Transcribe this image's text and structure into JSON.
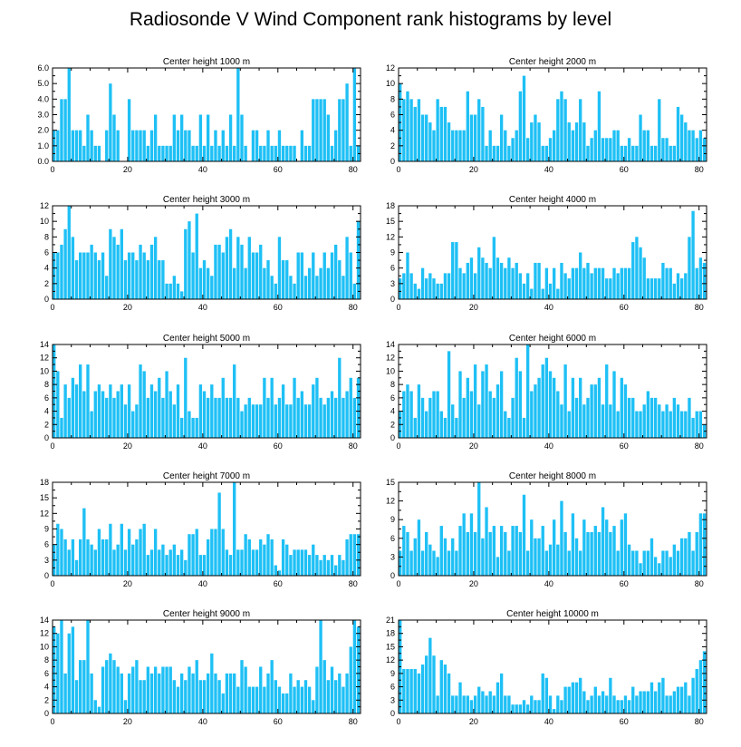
{
  "title": "Radiosonde V Wind Component rank histograms by level",
  "colors": {
    "bar": "#1ec0f5",
    "axis": "#000000",
    "background": "#ffffff"
  },
  "chart_data": [
    {
      "type": "bar",
      "title": "Center height 1000 m",
      "xlim": [
        0,
        82
      ],
      "ylim": [
        0,
        6
      ],
      "yticks": [
        "0.0",
        "1.0",
        "2.0",
        "3.0",
        "4.0",
        "5.0",
        "6.0"
      ],
      "yticks_values": [
        0,
        1,
        2,
        3,
        4,
        5,
        6
      ],
      "xticks": [
        "0",
        "20",
        "40",
        "60",
        "80"
      ],
      "xticks_values": [
        0,
        20,
        40,
        60,
        80
      ],
      "values": [
        2,
        2,
        4,
        4,
        6,
        2,
        2,
        2,
        1,
        3,
        2,
        1,
        1,
        0,
        2,
        5,
        3,
        2,
        0,
        0,
        4,
        2,
        2,
        2,
        2,
        1,
        2,
        3,
        1,
        1,
        1,
        1,
        3,
        2,
        3,
        2,
        2,
        1,
        1,
        3,
        1,
        3,
        1,
        2,
        1,
        2,
        1,
        3,
        1,
        6,
        3,
        1,
        0,
        2,
        2,
        1,
        1,
        2,
        1,
        1,
        2,
        1,
        1,
        1,
        1,
        0,
        2,
        1,
        1,
        4,
        4,
        4,
        4,
        3,
        1,
        2,
        4,
        4,
        5,
        1,
        6,
        1
      ]
    },
    {
      "type": "bar",
      "title": "Center height 2000 m",
      "xlim": [
        0,
        82
      ],
      "ylim": [
        0,
        12
      ],
      "yticks": [
        "0",
        "2",
        "4",
        "6",
        "8",
        "10",
        "12"
      ],
      "yticks_values": [
        0,
        2,
        4,
        6,
        8,
        10,
        12
      ],
      "xticks": [
        "0",
        "20",
        "40",
        "60",
        "80"
      ],
      "xticks_values": [
        0,
        20,
        40,
        60,
        80
      ],
      "values": [
        10,
        8,
        9,
        8,
        7,
        8,
        6,
        6,
        5,
        4,
        8,
        7,
        7,
        5,
        4,
        4,
        4,
        4,
        9,
        6,
        6,
        8,
        7,
        2,
        4,
        2,
        2,
        6,
        4,
        2,
        3,
        4,
        9,
        11,
        3,
        5,
        6,
        5,
        2,
        2,
        3,
        4,
        8,
        9,
        8,
        5,
        4,
        5,
        8,
        5,
        2,
        3,
        4,
        9,
        3,
        3,
        3,
        4,
        4,
        2,
        2,
        3,
        2,
        2,
        6,
        4,
        4,
        2,
        2,
        8,
        3,
        3,
        2,
        2,
        7,
        6,
        5,
        4,
        4,
        3,
        4,
        3
      ]
    },
    {
      "type": "bar",
      "title": "Center height 3000 m",
      "xlim": [
        0,
        82
      ],
      "ylim": [
        0,
        12
      ],
      "yticks": [
        "0",
        "2",
        "4",
        "6",
        "8",
        "10",
        "12"
      ],
      "yticks_values": [
        0,
        2,
        4,
        6,
        8,
        10,
        12
      ],
      "xticks": [
        "0",
        "20",
        "40",
        "60",
        "80"
      ],
      "xticks_values": [
        0,
        20,
        40,
        60,
        80
      ],
      "values": [
        6,
        6,
        7,
        9,
        12,
        8,
        5,
        6,
        6,
        6,
        7,
        6,
        5,
        6,
        3,
        9,
        8,
        7,
        9,
        5,
        6,
        6,
        5,
        7,
        6,
        5,
        7,
        8,
        5,
        5,
        2,
        2,
        3,
        2,
        1,
        9,
        10,
        6,
        11,
        4,
        5,
        4,
        3,
        7,
        7,
        6,
        8,
        9,
        4,
        8,
        7,
        4,
        8,
        6,
        6,
        7,
        4,
        5,
        3,
        2,
        8,
        5,
        5,
        3,
        2,
        6,
        6,
        3,
        4,
        6,
        3,
        4,
        6,
        4,
        6,
        7,
        5,
        3,
        8,
        6,
        2,
        10
      ]
    },
    {
      "type": "bar",
      "title": "Center height 4000 m",
      "xlim": [
        0,
        82
      ],
      "ylim": [
        0,
        18
      ],
      "yticks": [
        "0",
        "3",
        "6",
        "9",
        "12",
        "15",
        "18"
      ],
      "yticks_values": [
        0,
        3,
        6,
        9,
        12,
        15,
        18
      ],
      "xticks": [
        "0",
        "20",
        "40",
        "60",
        "80"
      ],
      "xticks_values": [
        0,
        20,
        40,
        60,
        80
      ],
      "values": [
        4,
        5,
        9,
        5,
        3,
        2,
        6,
        4,
        5,
        4,
        3,
        3,
        5,
        5,
        11,
        11,
        6,
        5,
        7,
        8,
        5,
        10,
        8,
        7,
        6,
        12,
        8,
        7,
        6,
        8,
        6,
        7,
        5,
        3,
        5,
        2,
        7,
        7,
        2,
        6,
        3,
        6,
        2,
        7,
        5,
        4,
        6,
        6,
        9,
        6,
        7,
        5,
        6,
        6,
        6,
        4,
        4,
        6,
        5,
        6,
        6,
        6,
        11,
        12,
        10,
        8,
        4,
        4,
        4,
        4,
        7,
        6,
        6,
        3,
        5,
        4,
        5,
        12,
        17,
        6,
        8,
        7
      ]
    },
    {
      "type": "bar",
      "title": "Center height 5000 m",
      "xlim": [
        0,
        82
      ],
      "ylim": [
        0,
        14
      ],
      "yticks": [
        "0",
        "2",
        "4",
        "6",
        "8",
        "10",
        "12",
        "14"
      ],
      "yticks_values": [
        0,
        2,
        4,
        6,
        8,
        10,
        12,
        14
      ],
      "xticks": [
        "0",
        "20",
        "40",
        "60",
        "80"
      ],
      "xticks_values": [
        0,
        20,
        40,
        60,
        80
      ],
      "values": [
        14,
        10,
        3,
        8,
        6,
        9,
        8,
        11,
        7,
        11,
        4,
        7,
        8,
        7,
        6,
        8,
        6,
        7,
        8,
        5,
        8,
        4,
        5,
        11,
        10,
        6,
        8,
        7,
        9,
        6,
        10,
        7,
        5,
        8,
        3,
        12,
        4,
        3,
        3,
        8,
        7,
        6,
        8,
        6,
        6,
        9,
        6,
        6,
        11,
        6,
        4,
        5,
        6,
        5,
        5,
        5,
        9,
        6,
        9,
        5,
        6,
        8,
        5,
        5,
        9,
        6,
        7,
        5,
        5,
        8,
        9,
        6,
        5,
        6,
        7,
        6,
        12,
        6,
        7,
        9,
        6,
        9
      ]
    },
    {
      "type": "bar",
      "title": "Center height 6000 m",
      "xlim": [
        0,
        82
      ],
      "ylim": [
        0,
        14
      ],
      "yticks": [
        "0",
        "2",
        "4",
        "6",
        "8",
        "10",
        "12",
        "14"
      ],
      "yticks_values": [
        0,
        2,
        4,
        6,
        8,
        10,
        12,
        14
      ],
      "xticks": [
        "0",
        "20",
        "40",
        "60",
        "80"
      ],
      "xticks_values": [
        0,
        20,
        40,
        60,
        80
      ],
      "values": [
        4,
        7,
        8,
        7,
        3,
        8,
        6,
        4,
        6,
        7,
        7,
        4,
        3,
        13,
        5,
        3,
        10,
        6,
        9,
        7,
        11,
        5,
        10,
        11,
        7,
        6,
        8,
        10,
        4,
        3,
        6,
        12,
        10,
        3,
        14,
        7,
        8,
        9,
        11,
        12,
        10,
        9,
        7,
        5,
        11,
        4,
        9,
        6,
        9,
        5,
        6,
        8,
        8,
        9,
        5,
        11,
        5,
        10,
        4,
        9,
        8,
        6,
        6,
        4,
        4,
        5,
        7,
        6,
        6,
        5,
        4,
        5,
        4,
        6,
        5,
        4,
        4,
        6,
        3,
        4,
        4,
        2
      ]
    },
    {
      "type": "bar",
      "title": "Center height 7000 m",
      "xlim": [
        0,
        82
      ],
      "ylim": [
        0,
        18
      ],
      "yticks": [
        "0",
        "3",
        "6",
        "9",
        "12",
        "15",
        "18"
      ],
      "yticks_values": [
        0,
        3,
        6,
        9,
        12,
        15,
        18
      ],
      "xticks": [
        "0",
        "20",
        "40",
        "60",
        "80"
      ],
      "xticks_values": [
        0,
        20,
        40,
        60,
        80
      ],
      "values": [
        6,
        10,
        9,
        7,
        5,
        7,
        3,
        7,
        13,
        7,
        6,
        5,
        9,
        7,
        7,
        10,
        5,
        6,
        10,
        5,
        9,
        6,
        7,
        9,
        10,
        4,
        5,
        9,
        5,
        6,
        4,
        5,
        6,
        4,
        5,
        3,
        8,
        8,
        9,
        4,
        4,
        7,
        9,
        9,
        16,
        9,
        5,
        4,
        18,
        5,
        5,
        8,
        7,
        5,
        5,
        7,
        6,
        8,
        7,
        2,
        1,
        7,
        6,
        4,
        5,
        5,
        5,
        5,
        4,
        6,
        4,
        3,
        4,
        3,
        4,
        2,
        4,
        3,
        7,
        8,
        8,
        8
      ]
    },
    {
      "type": "bar",
      "title": "Center height 8000 m",
      "xlim": [
        0,
        82
      ],
      "ylim": [
        0,
        15
      ],
      "yticks": [
        "0",
        "3",
        "6",
        "9",
        "12",
        "15"
      ],
      "yticks_values": [
        0,
        3,
        6,
        9,
        12,
        15
      ],
      "xticks": [
        "0",
        "20",
        "40",
        "60",
        "80"
      ],
      "xticks_values": [
        0,
        20,
        40,
        60,
        80
      ],
      "values": [
        4,
        8,
        7,
        4,
        6,
        9,
        4,
        7,
        5,
        4,
        3,
        8,
        6,
        4,
        6,
        4,
        8,
        10,
        7,
        10,
        7,
        15,
        6,
        11,
        7,
        8,
        3,
        8,
        7,
        4,
        8,
        8,
        7,
        13,
        4,
        9,
        6,
        6,
        8,
        4,
        5,
        9,
        5,
        12,
        7,
        4,
        10,
        6,
        4,
        9,
        7,
        7,
        8,
        7,
        11,
        9,
        7,
        8,
        4,
        9,
        10,
        5,
        4,
        4,
        2,
        4,
        4,
        6,
        3,
        2,
        4,
        4,
        3,
        5,
        4,
        6,
        6,
        7,
        4,
        7,
        10,
        10
      ]
    },
    {
      "type": "bar",
      "title": "Center height 9000 m",
      "xlim": [
        0,
        82
      ],
      "ylim": [
        0,
        14
      ],
      "yticks": [
        "0",
        "2",
        "4",
        "6",
        "8",
        "10",
        "12",
        "14"
      ],
      "yticks_values": [
        0,
        2,
        4,
        6,
        8,
        10,
        12,
        14
      ],
      "xticks": [
        "0",
        "20",
        "40",
        "60",
        "80"
      ],
      "xticks_values": [
        0,
        20,
        40,
        60,
        80
      ],
      "values": [
        13,
        12,
        14,
        6,
        12,
        13,
        5,
        8,
        8,
        14,
        6,
        2,
        1,
        7,
        8,
        9,
        8,
        7,
        6,
        2,
        6,
        7,
        8,
        5,
        5,
        7,
        6,
        7,
        6,
        7,
        7,
        7,
        5,
        4,
        6,
        5,
        7,
        6,
        8,
        5,
        5,
        6,
        9,
        6,
        5,
        3,
        6,
        6,
        6,
        4,
        8,
        7,
        4,
        4,
        4,
        7,
        4,
        6,
        8,
        5,
        4,
        3,
        3,
        6,
        4,
        5,
        4,
        5,
        4,
        2,
        7,
        14,
        8,
        5,
        7,
        5,
        6,
        4,
        6,
        10,
        14,
        13
      ]
    },
    {
      "type": "bar",
      "title": "Center height 10000 m",
      "xlim": [
        0,
        82
      ],
      "ylim": [
        0,
        21
      ],
      "yticks": [
        "0",
        "3",
        "6",
        "9",
        "12",
        "15",
        "18",
        "21"
      ],
      "yticks_values": [
        0,
        3,
        6,
        9,
        12,
        15,
        18,
        21
      ],
      "xticks": [
        "0",
        "20",
        "40",
        "60",
        "80"
      ],
      "xticks_values": [
        0,
        20,
        40,
        60,
        80
      ],
      "values": [
        21,
        10,
        10,
        10,
        10,
        9,
        11,
        13,
        17,
        13,
        4,
        12,
        11,
        9,
        4,
        4,
        7,
        4,
        4,
        3,
        4,
        6,
        5,
        4,
        5,
        4,
        7,
        9,
        4,
        4,
        2,
        2,
        2,
        3,
        2,
        4,
        3,
        3,
        9,
        8,
        4,
        1,
        4,
        3,
        6,
        6,
        7,
        7,
        8,
        5,
        3,
        4,
        6,
        4,
        5,
        4,
        8,
        4,
        3,
        3,
        4,
        3,
        6,
        4,
        5,
        5,
        5,
        7,
        5,
        7,
        8,
        4,
        4,
        5,
        6,
        6,
        7,
        4,
        8,
        10,
        12,
        14
      ]
    }
  ]
}
